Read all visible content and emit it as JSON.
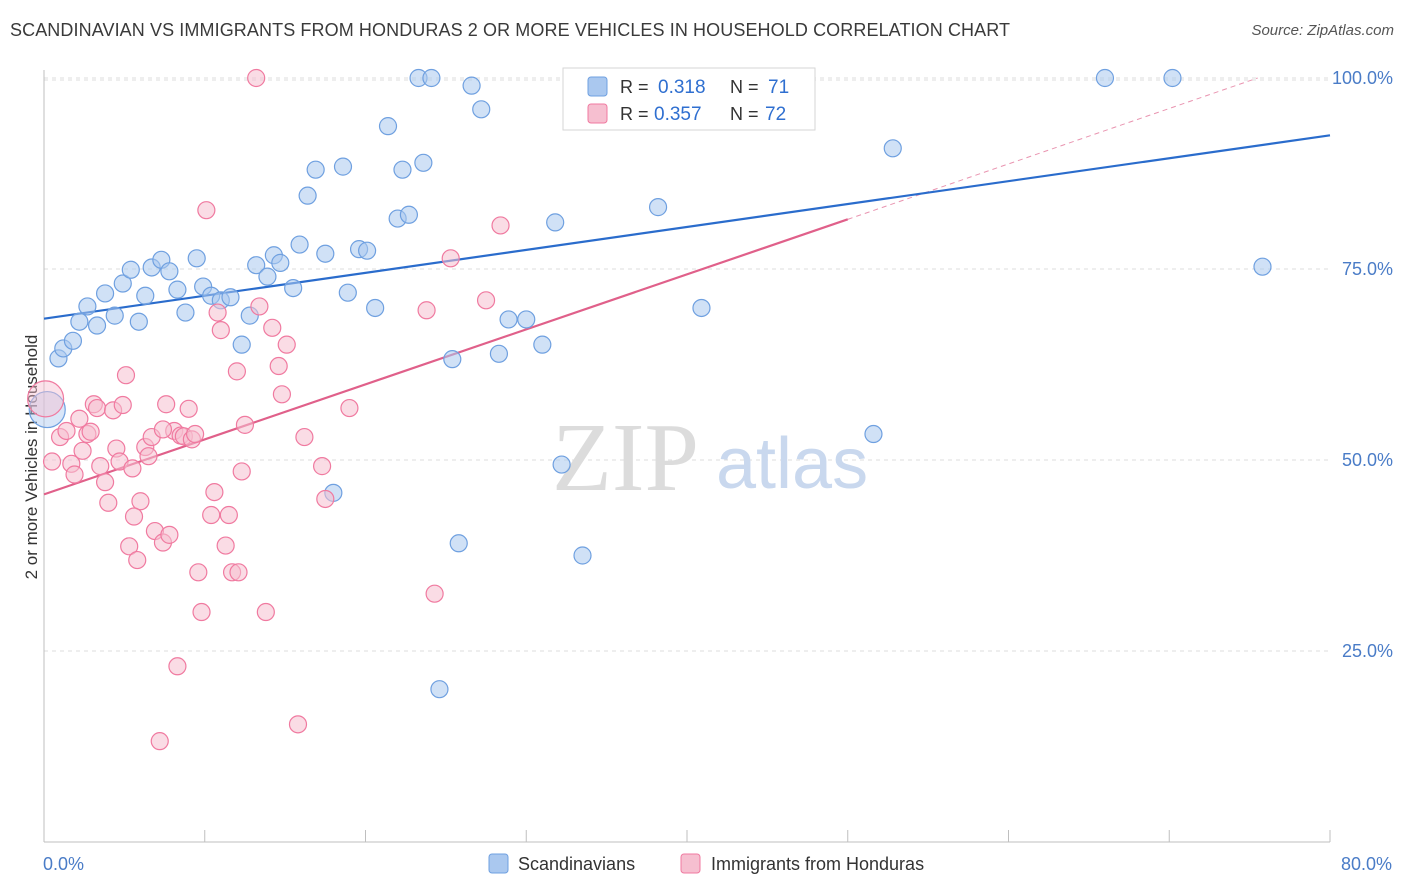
{
  "title": "SCANDINAVIAN VS IMMIGRANTS FROM HONDURAS 2 OR MORE VEHICLES IN HOUSEHOLD CORRELATION CHART",
  "source": "Source: ZipAtlas.com",
  "watermark": {
    "zip": "ZIP",
    "atlas": "atlas"
  },
  "colors": {
    "blue": "#6fa0e0",
    "blue_fill": "#aac8ef",
    "blue_line": "#2a6ccc",
    "pink": "#f07aa0",
    "pink_fill": "#f6bfd0",
    "pink_line": "#e0608a",
    "tick_text": "#4a7cc7",
    "grid": "#dddddd"
  },
  "legend": {
    "rows": [
      {
        "r_label": "R = ",
        "r_value": "0.318",
        "n_label": "N = ",
        "n_value": "71"
      },
      {
        "r_label": "R = ",
        "r_value": "0.357",
        "n_label": "N = ",
        "n_value": "72"
      }
    ]
  },
  "bottom_legend": [
    "Scandinavians",
    "Immigrants from Honduras"
  ],
  "chart_data": {
    "type": "scatter",
    "title": "SCANDINAVIAN VS IMMIGRANTS FROM HONDURAS 2 OR MORE VEHICLES IN HOUSEHOLD CORRELATION CHART",
    "xlabel": "",
    "ylabel": "2 or more Vehicles in Household",
    "xlim": [
      0,
      80
    ],
    "ylim": [
      0,
      104
    ],
    "x_tick_labels": [
      "0.0%",
      "80.0%"
    ],
    "y_ticks": [
      25,
      50,
      75,
      100
    ],
    "y_tick_labels": [
      "25.0%",
      "50.0%",
      "75.0%",
      "100.0%"
    ],
    "grid": true,
    "legend_position": "top-center",
    "series": [
      {
        "name": "Scandinavians",
        "color": "#6fa0e0",
        "r": 0.318,
        "n": 71,
        "trend": {
          "x": [
            0,
            80
          ],
          "y": [
            68.5,
            92.5
          ]
        },
        "points": [
          [
            0.2,
            56.6
          ],
          [
            0.9,
            63.3
          ],
          [
            1.2,
            64.6
          ],
          [
            1.8,
            65.6
          ],
          [
            2.2,
            68.1
          ],
          [
            2.7,
            70.1
          ],
          [
            3.3,
            67.6
          ],
          [
            3.8,
            71.8
          ],
          [
            4.4,
            68.9
          ],
          [
            4.9,
            73.1
          ],
          [
            5.4,
            74.9
          ],
          [
            5.9,
            68.1
          ],
          [
            6.3,
            71.5
          ],
          [
            6.7,
            75.2
          ],
          [
            7.3,
            76.2
          ],
          [
            7.8,
            74.7
          ],
          [
            8.3,
            72.3
          ],
          [
            8.8,
            69.3
          ],
          [
            9.5,
            76.4
          ],
          [
            9.9,
            72.7
          ],
          [
            10.4,
            71.5
          ],
          [
            11.0,
            70.9
          ],
          [
            11.6,
            71.3
          ],
          [
            12.3,
            65.1
          ],
          [
            12.8,
            68.9
          ],
          [
            13.2,
            75.5
          ],
          [
            13.9,
            74.0
          ],
          [
            14.3,
            76.8
          ],
          [
            14.7,
            75.8
          ],
          [
            15.5,
            72.5
          ],
          [
            15.9,
            78.2
          ],
          [
            16.4,
            84.6
          ],
          [
            16.9,
            88.0
          ],
          [
            17.5,
            77.0
          ],
          [
            18.6,
            88.4
          ],
          [
            18.9,
            71.9
          ],
          [
            19.6,
            77.6
          ],
          [
            20.1,
            77.4
          ],
          [
            20.6,
            69.9
          ],
          [
            21.4,
            93.7
          ],
          [
            22.0,
            81.6
          ],
          [
            22.3,
            88.0
          ],
          [
            22.7,
            82.1
          ],
          [
            23.3,
            100.0
          ],
          [
            23.6,
            88.9
          ],
          [
            24.1,
            100.0
          ],
          [
            24.6,
            20.0
          ],
          [
            25.4,
            63.2
          ],
          [
            25.8,
            39.1
          ],
          [
            26.6,
            99.0
          ],
          [
            27.2,
            95.9
          ],
          [
            28.3,
            63.9
          ],
          [
            28.9,
            68.4
          ],
          [
            30.0,
            68.4
          ],
          [
            31.0,
            65.1
          ],
          [
            31.8,
            81.1
          ],
          [
            32.2,
            49.4
          ],
          [
            33.5,
            37.5
          ],
          [
            35.8,
            100.0
          ],
          [
            38.2,
            83.1
          ],
          [
            40.9,
            69.9
          ],
          [
            42.1,
            100.0
          ],
          [
            44.0,
            100.0
          ],
          [
            46.0,
            100.0
          ],
          [
            51.6,
            53.4
          ],
          [
            52.8,
            90.8
          ],
          [
            18.0,
            45.7
          ],
          [
            42.5,
            100.0
          ],
          [
            66.0,
            100.0
          ],
          [
            70.2,
            100.0
          ],
          [
            75.8,
            75.3
          ]
        ]
      },
      {
        "name": "Immigrants from Honduras",
        "color": "#f07aa0",
        "r": 0.357,
        "n": 72,
        "trend": {
          "x": [
            0,
            50
          ],
          "y": [
            45.5,
            81.5
          ]
        },
        "trend_extension": {
          "x": [
            50,
            75.5
          ],
          "y": [
            81.5,
            100.0
          ]
        },
        "points": [
          [
            0.1,
            58.0
          ],
          [
            0.5,
            49.8
          ],
          [
            1.0,
            53.0
          ],
          [
            1.4,
            53.8
          ],
          [
            1.7,
            49.5
          ],
          [
            1.9,
            48.1
          ],
          [
            2.2,
            55.4
          ],
          [
            2.4,
            51.2
          ],
          [
            2.7,
            53.4
          ],
          [
            2.9,
            53.7
          ],
          [
            3.1,
            57.3
          ],
          [
            3.3,
            56.8
          ],
          [
            3.5,
            49.2
          ],
          [
            3.8,
            47.1
          ],
          [
            4.0,
            44.4
          ],
          [
            4.3,
            56.5
          ],
          [
            4.5,
            51.5
          ],
          [
            4.7,
            49.8
          ],
          [
            4.9,
            57.2
          ],
          [
            5.1,
            61.1
          ],
          [
            5.3,
            38.7
          ],
          [
            5.5,
            48.9
          ],
          [
            5.8,
            36.9
          ],
          [
            6.0,
            44.6
          ],
          [
            6.3,
            51.7
          ],
          [
            6.5,
            50.5
          ],
          [
            6.7,
            53.0
          ],
          [
            6.9,
            40.7
          ],
          [
            7.2,
            13.2
          ],
          [
            7.4,
            39.2
          ],
          [
            7.6,
            57.3
          ],
          [
            7.8,
            40.2
          ],
          [
            8.1,
            53.8
          ],
          [
            8.3,
            23.0
          ],
          [
            8.5,
            53.2
          ],
          [
            8.7,
            53.1
          ],
          [
            9.0,
            56.7
          ],
          [
            9.2,
            52.7
          ],
          [
            9.4,
            53.4
          ],
          [
            9.6,
            35.3
          ],
          [
            9.8,
            30.1
          ],
          [
            10.1,
            82.7
          ],
          [
            10.4,
            42.8
          ],
          [
            10.6,
            45.8
          ],
          [
            10.8,
            69.3
          ],
          [
            11.0,
            67.0
          ],
          [
            11.3,
            38.8
          ],
          [
            11.5,
            42.8
          ],
          [
            11.7,
            35.3
          ],
          [
            12.1,
            35.3
          ],
          [
            12.3,
            48.5
          ],
          [
            12.5,
            54.6
          ],
          [
            13.2,
            100.0
          ],
          [
            13.4,
            70.1
          ],
          [
            13.8,
            30.1
          ],
          [
            14.2,
            67.3
          ],
          [
            14.6,
            62.3
          ],
          [
            14.8,
            58.6
          ],
          [
            15.1,
            65.1
          ],
          [
            15.8,
            15.4
          ],
          [
            17.3,
            49.2
          ],
          [
            17.5,
            44.9
          ],
          [
            19.0,
            56.8
          ],
          [
            23.8,
            69.6
          ],
          [
            24.3,
            32.5
          ],
          [
            25.3,
            76.4
          ],
          [
            27.5,
            70.9
          ],
          [
            28.4,
            80.7
          ],
          [
            5.6,
            42.6
          ],
          [
            7.4,
            54.0
          ],
          [
            12.0,
            61.6
          ],
          [
            16.2,
            53.0
          ]
        ]
      }
    ]
  }
}
